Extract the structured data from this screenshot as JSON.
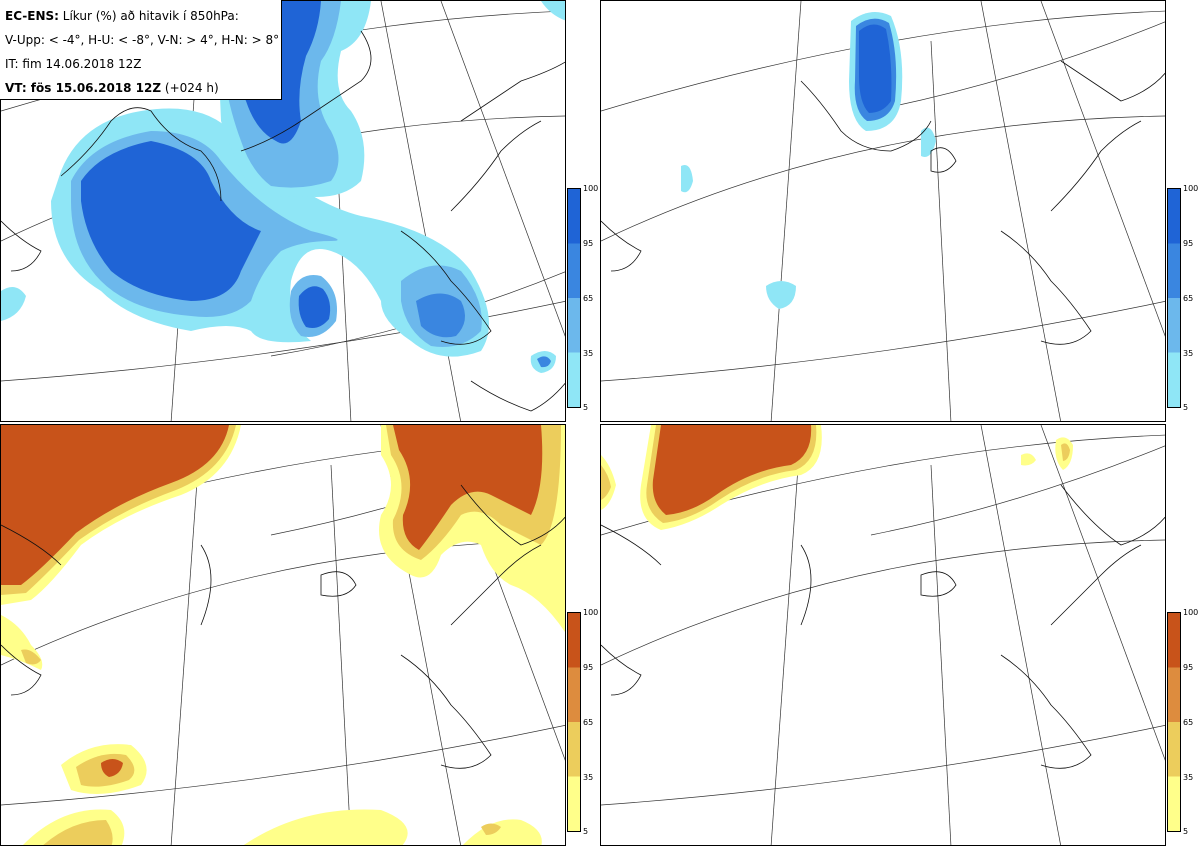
{
  "header": {
    "model": "EC-ENS:",
    "title": "Líkur (%) að hitavik í 850hPa:",
    "thresholds": "V-Upp: < -4°, H-U: < -8°, V-N: > 4°, H-N: > 8°",
    "init_time": "IT: fim 14.06.2018 12Z",
    "valid_time_bold": "VT: fös 15.06.2018 12Z",
    "lead": "(+024 h)"
  },
  "colorbar_cold": {
    "ticks": [
      "100",
      "95",
      "65",
      "35",
      "5"
    ],
    "colors": [
      "#1f64d6",
      "#3a86e0",
      "#6cb8ec",
      "#8fe6f6"
    ]
  },
  "colorbar_warm": {
    "ticks": [
      "100",
      "95",
      "65",
      "35",
      "5"
    ],
    "colors": [
      "#c8531a",
      "#dd8c3e",
      "#eccd5c",
      "#ffff8a"
    ]
  },
  "panels": [
    {
      "id": "top-left",
      "field": "cold"
    },
    {
      "id": "top-right",
      "field": "cold"
    },
    {
      "id": "bottom-left",
      "field": "warm"
    },
    {
      "id": "bottom-right",
      "field": "warm"
    }
  ]
}
